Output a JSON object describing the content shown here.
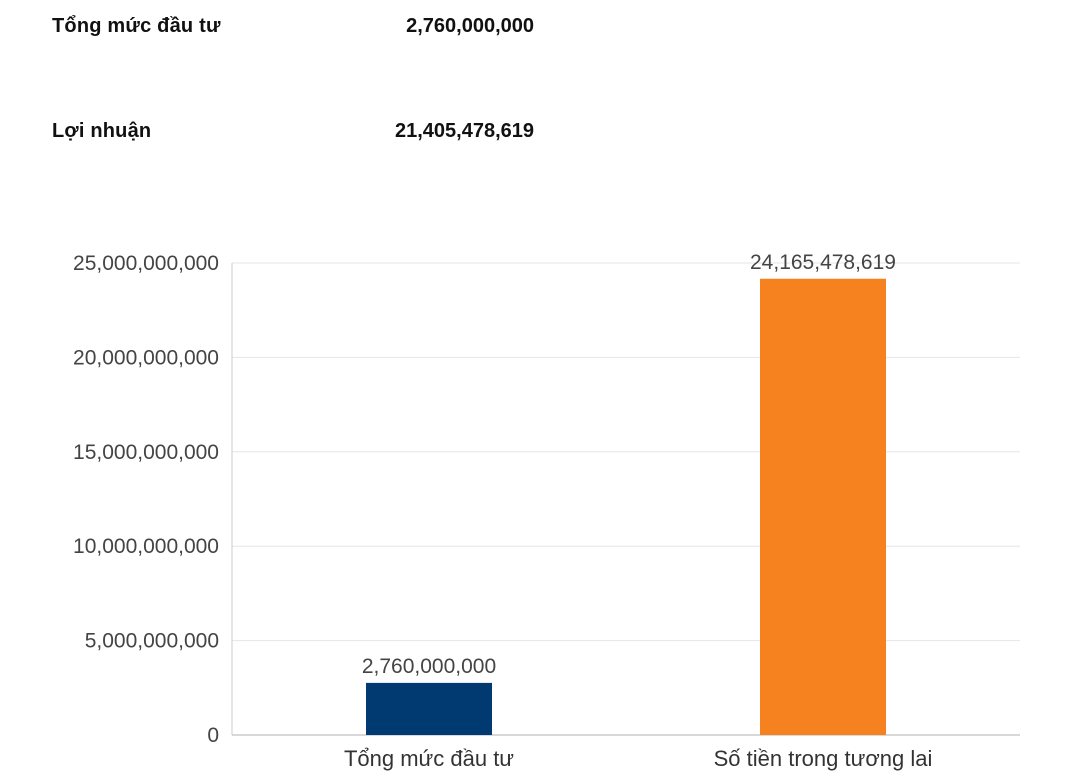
{
  "summary": {
    "investment_label": "Tổng mức đầu tư",
    "investment_value": "2,760,000,000",
    "profit_label": "Lợi nhuận",
    "profit_value": "21,405,478,619"
  },
  "chart_data": {
    "type": "bar",
    "title": "",
    "xlabel": "",
    "ylabel": "",
    "categories": [
      "Tổng mức đầu tư",
      "Số tiền trong tương lai"
    ],
    "values": [
      2760000000,
      24165478619
    ],
    "value_labels": [
      "2,760,000,000",
      "24,165,478,619"
    ],
    "colors": [
      "#003a70",
      "#f5821f"
    ],
    "ylim": [
      0,
      25000000000
    ],
    "yticks": [
      0,
      5000000000,
      10000000000,
      15000000000,
      20000000000,
      25000000000
    ],
    "ytick_labels": [
      "0",
      "5,000,000,000",
      "10,000,000,000",
      "15,000,000,000",
      "20,000,000,000",
      "25,000,000,000"
    ],
    "grid": true,
    "legend": "none"
  }
}
